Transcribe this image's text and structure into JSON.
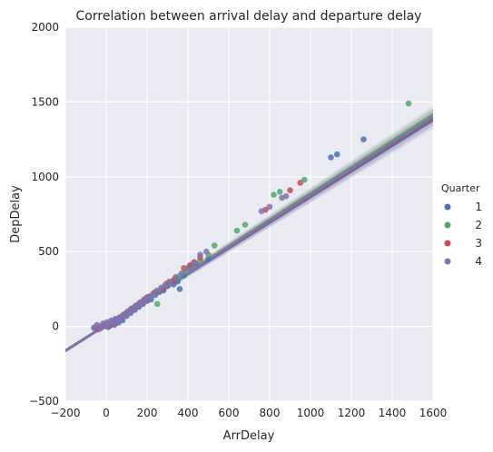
{
  "chart_data": {
    "type": "scatter",
    "title": "Correlation between arrival delay and departure delay",
    "xlabel": "ArrDelay",
    "ylabel": "DepDelay",
    "xlim": [
      -200,
      1600
    ],
    "ylim": [
      -500,
      2000
    ],
    "xticks": [
      -200,
      0,
      200,
      400,
      600,
      800,
      1000,
      1200,
      1400,
      1600
    ],
    "yticks": [
      -500,
      0,
      500,
      1000,
      1500,
      2000
    ],
    "xtick_labels": [
      "−200",
      "0",
      "200",
      "400",
      "600",
      "800",
      "1000",
      "1200",
      "1400",
      "1600"
    ],
    "ytick_labels": [
      "−500",
      "0",
      "500",
      "1000",
      "1500",
      "2000"
    ],
    "grid": true,
    "background": "#eaeaf2",
    "legend": {
      "title": "Quarter",
      "placement": "right",
      "entries": [
        "1",
        "2",
        "3",
        "4"
      ]
    },
    "series": [
      {
        "name": "1",
        "color": "#4c72b0",
        "fit": {
          "slope": 0.855,
          "intercept": 10,
          "x_range": [
            -200,
            1600
          ]
        },
        "points": [
          [
            -60,
            -10
          ],
          [
            -40,
            -15
          ],
          [
            -20,
            -5
          ],
          [
            0,
            5
          ],
          [
            10,
            -5
          ],
          [
            20,
            10
          ],
          [
            30,
            20
          ],
          [
            40,
            10
          ],
          [
            60,
            25
          ],
          [
            80,
            40
          ],
          [
            100,
            70
          ],
          [
            120,
            90
          ],
          [
            140,
            110
          ],
          [
            160,
            130
          ],
          [
            180,
            150
          ],
          [
            200,
            170
          ],
          [
            220,
            180
          ],
          [
            240,
            210
          ],
          [
            260,
            230
          ],
          [
            280,
            240
          ],
          [
            300,
            270
          ],
          [
            330,
            280
          ],
          [
            350,
            300
          ],
          [
            360,
            250
          ],
          [
            380,
            340
          ],
          [
            410,
            400
          ],
          [
            440,
            420
          ],
          [
            500,
            450
          ],
          [
            1100,
            1130
          ],
          [
            1130,
            1150
          ],
          [
            1260,
            1250
          ]
        ]
      },
      {
        "name": "2",
        "color": "#55a868",
        "fit": {
          "slope": 0.88,
          "intercept": 10,
          "x_range": [
            -200,
            1600
          ]
        },
        "points": [
          [
            -50,
            -5
          ],
          [
            -30,
            0
          ],
          [
            -10,
            10
          ],
          [
            10,
            20
          ],
          [
            30,
            35
          ],
          [
            50,
            45
          ],
          [
            70,
            60
          ],
          [
            90,
            80
          ],
          [
            110,
            100
          ],
          [
            130,
            120
          ],
          [
            150,
            140
          ],
          [
            170,
            160
          ],
          [
            190,
            180
          ],
          [
            210,
            200
          ],
          [
            230,
            220
          ],
          [
            250,
            150
          ],
          [
            270,
            250
          ],
          [
            290,
            280
          ],
          [
            310,
            290
          ],
          [
            340,
            320
          ],
          [
            360,
            340
          ],
          [
            390,
            370
          ],
          [
            420,
            410
          ],
          [
            460,
            440
          ],
          [
            500,
            480
          ],
          [
            530,
            540
          ],
          [
            640,
            640
          ],
          [
            680,
            680
          ],
          [
            820,
            880
          ],
          [
            850,
            900
          ],
          [
            970,
            980
          ],
          [
            1480,
            1490
          ]
        ]
      },
      {
        "name": "3",
        "color": "#c44e52",
        "fit": {
          "slope": 0.865,
          "intercept": 10,
          "x_range": [
            -200,
            1600
          ]
        },
        "points": [
          [
            -40,
            -20
          ],
          [
            -20,
            0
          ],
          [
            0,
            15
          ],
          [
            20,
            5
          ],
          [
            40,
            30
          ],
          [
            60,
            50
          ],
          [
            80,
            70
          ],
          [
            100,
            90
          ],
          [
            120,
            115
          ],
          [
            140,
            130
          ],
          [
            160,
            150
          ],
          [
            180,
            170
          ],
          [
            200,
            195
          ],
          [
            240,
            230
          ],
          [
            280,
            250
          ],
          [
            300,
            290
          ],
          [
            330,
            310
          ],
          [
            380,
            390
          ],
          [
            410,
            410
          ],
          [
            430,
            430
          ],
          [
            460,
            460
          ],
          [
            780,
            780
          ],
          [
            900,
            910
          ],
          [
            950,
            960
          ]
        ]
      },
      {
        "name": "4",
        "color": "#8172b2",
        "fit": {
          "slope": 0.87,
          "intercept": 10,
          "x_range": [
            -200,
            1600
          ]
        },
        "points": [
          [
            -55,
            -5
          ],
          [
            -45,
            10
          ],
          [
            -30,
            -15
          ],
          [
            -15,
            20
          ],
          [
            0,
            0
          ],
          [
            5,
            30
          ],
          [
            15,
            15
          ],
          [
            25,
            40
          ],
          [
            35,
            25
          ],
          [
            45,
            50
          ],
          [
            55,
            35
          ],
          [
            65,
            60
          ],
          [
            75,
            55
          ],
          [
            85,
            80
          ],
          [
            95,
            70
          ],
          [
            105,
            100
          ],
          [
            115,
            95
          ],
          [
            125,
            120
          ],
          [
            135,
            115
          ],
          [
            145,
            140
          ],
          [
            155,
            130
          ],
          [
            165,
            160
          ],
          [
            175,
            150
          ],
          [
            185,
            180
          ],
          [
            195,
            175
          ],
          [
            210,
            200
          ],
          [
            230,
            215
          ],
          [
            250,
            240
          ],
          [
            270,
            260
          ],
          [
            290,
            275
          ],
          [
            310,
            300
          ],
          [
            340,
            330
          ],
          [
            370,
            355
          ],
          [
            400,
            390
          ],
          [
            430,
            420
          ],
          [
            460,
            480
          ],
          [
            490,
            500
          ],
          [
            760,
            770
          ],
          [
            800,
            800
          ],
          [
            860,
            860
          ],
          [
            880,
            870
          ]
        ]
      }
    ]
  }
}
